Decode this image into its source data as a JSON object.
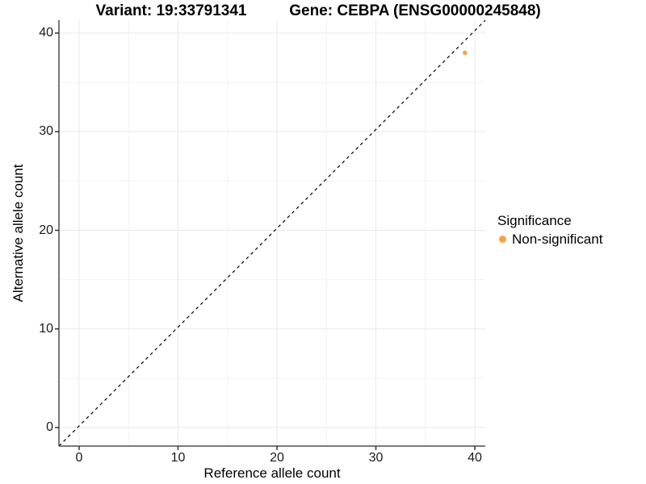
{
  "chart_data": {
    "type": "scatter",
    "title_left": "Variant: 19:33791341",
    "title_right": "Gene: CEBPA (ENSG00000245848)",
    "xlabel": "Reference allele count",
    "ylabel": "Alternative allele count",
    "xlim": [
      -2,
      41
    ],
    "ylim": [
      -2,
      41
    ],
    "x_ticks": [
      0,
      10,
      20,
      30,
      40
    ],
    "y_ticks": [
      0,
      10,
      20,
      30,
      40
    ],
    "x_minor_ticks": [
      5,
      15,
      25,
      35
    ],
    "y_minor_ticks": [
      5,
      15,
      25,
      35
    ],
    "grid": true,
    "reference_line": {
      "type": "identity",
      "equation": "y = x",
      "style": "dashed",
      "color": "#000000"
    },
    "series": [
      {
        "name": "Non-significant",
        "color": "#F9A243",
        "points": [
          {
            "x": 39,
            "y": 38
          }
        ]
      }
    ],
    "legend": {
      "title": "Significance",
      "position": "right",
      "entries": [
        {
          "label": "Non-significant",
          "color": "#F9A243"
        }
      ]
    }
  }
}
